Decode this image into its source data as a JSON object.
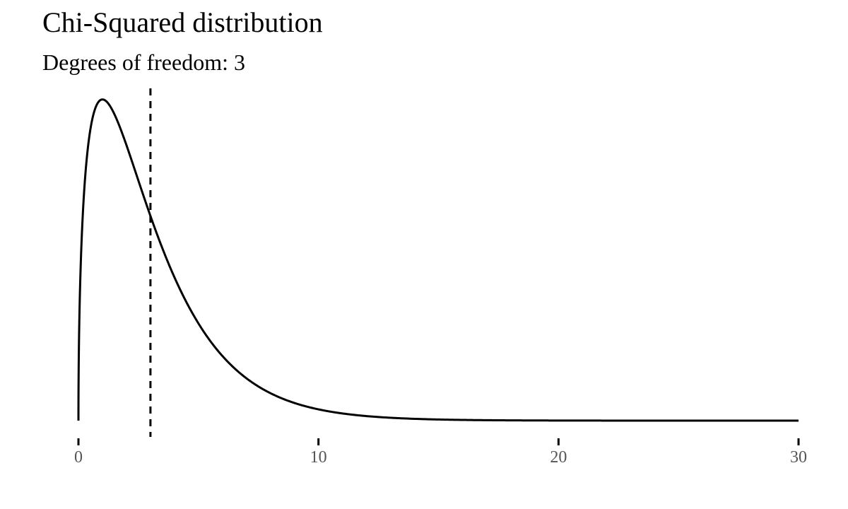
{
  "chart_data": {
    "type": "line",
    "title": "Chi-Squared distribution",
    "subtitle": "Degrees of freedom: 3",
    "degrees_of_freedom": 3,
    "xlim": [
      0,
      30
    ],
    "ylim": [
      0,
      0.245
    ],
    "x_ticks": [
      {
        "value": 0,
        "label": "0"
      },
      {
        "value": 10,
        "label": "10"
      },
      {
        "value": 20,
        "label": "20"
      },
      {
        "value": 30,
        "label": "30"
      }
    ],
    "series": [
      {
        "x": [
          0,
          0.05,
          0.1,
          0.2,
          0.3,
          0.5,
          0.7,
          1,
          1.3,
          1.6,
          2,
          2.5,
          3,
          3.5,
          4,
          5,
          6,
          7,
          8,
          9,
          10,
          12,
          14,
          16,
          18,
          20,
          25,
          30
        ],
        "values": [
          0,
          0.0873,
          0.12,
          0.1614,
          0.1881,
          0.2197,
          0.235,
          0.242,
          0.2388,
          0.229,
          0.2076,
          0.177,
          0.1542,
          0.1291,
          0.108,
          0.0733,
          0.0488,
          0.0319,
          0.0207,
          0.0133,
          0.0085,
          0.0035,
          0.0014,
          0.0005,
          0.0002,
          0.0001,
          0.0,
          0.0
        ],
        "color": "#000000"
      }
    ],
    "reference_line": {
      "x": 3,
      "style": "dashed",
      "color": "#000000"
    },
    "grid": false,
    "y_axis_visible": false
  }
}
